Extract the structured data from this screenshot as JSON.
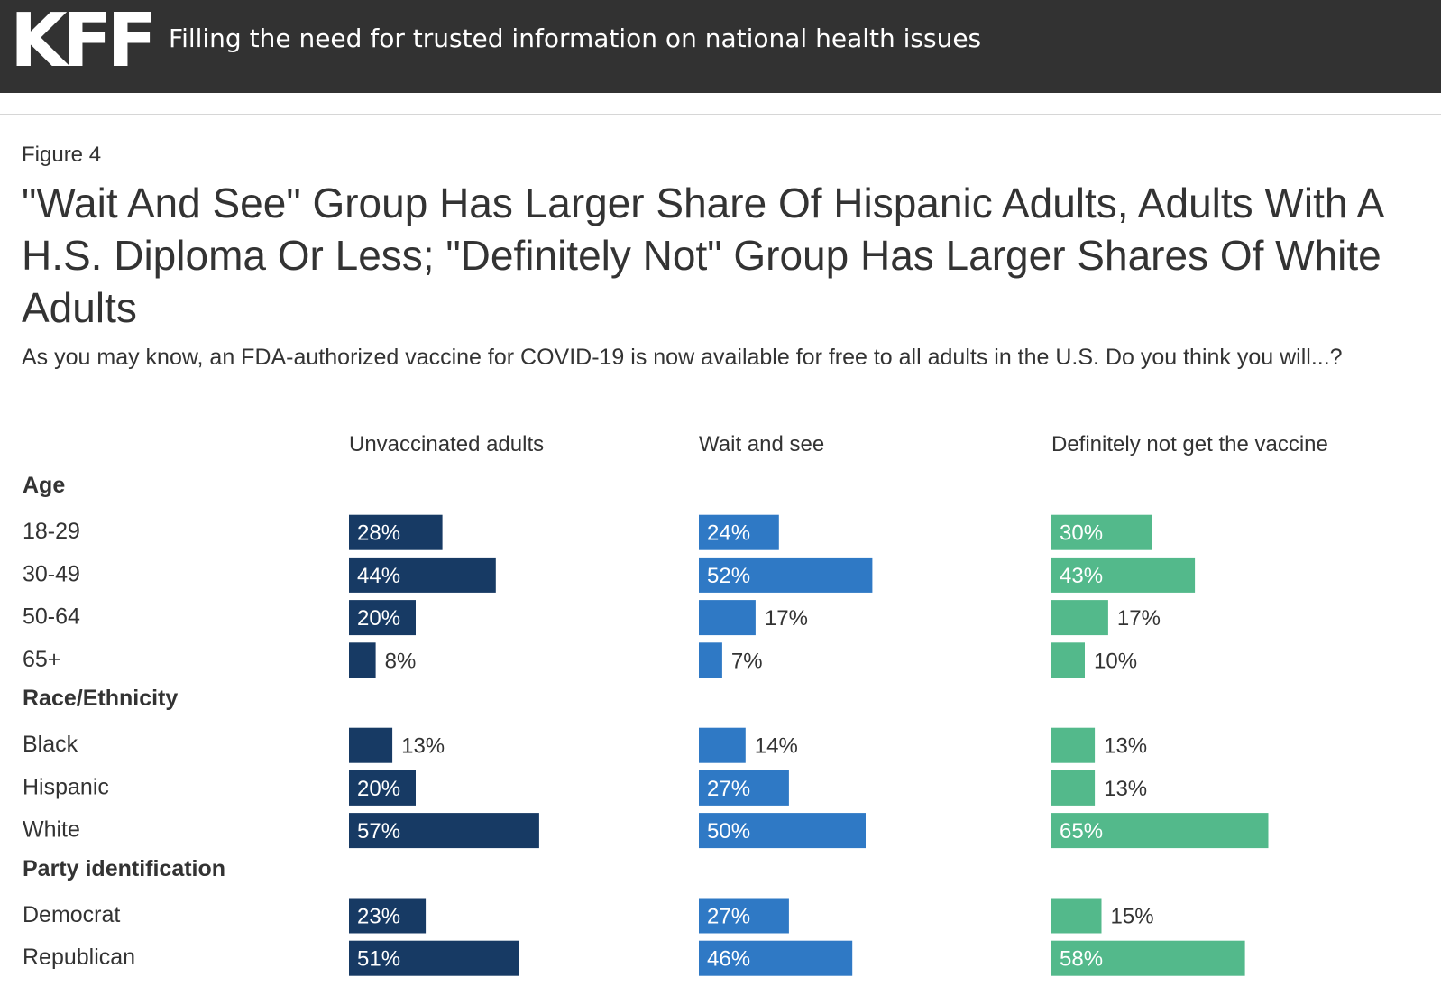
{
  "header": {
    "logo": "KFF",
    "tagline": "Filling the need for trusted information on national health issues"
  },
  "figure": {
    "label": "Figure 4",
    "title": "\"Wait And See\" Group Has Larger Share Of Hispanic Adults, Adults With A H.S. Diploma Or Less; \"Definitely Not\" Group Has Larger Shares Of White Adults",
    "subtitle": "As you may know, an FDA-authorized vaccine for COVID-19 is now available for free to all adults in the U.S. Do you think you will...?"
  },
  "chart_data": {
    "type": "bar",
    "orientation": "horizontal",
    "unit": "%",
    "series": [
      {
        "name": "Unvaccinated adults",
        "color": "#173a64",
        "values": [
          28,
          44,
          20,
          8,
          13,
          20,
          57,
          23,
          51
        ]
      },
      {
        "name": "Wait and see",
        "color": "#2f79c5",
        "values": [
          24,
          52,
          17,
          7,
          14,
          27,
          50,
          27,
          46
        ]
      },
      {
        "name": "Definitely not get the vaccine",
        "color": "#53b98b",
        "values": [
          30,
          43,
          17,
          10,
          13,
          13,
          65,
          15,
          58
        ]
      }
    ],
    "groups": [
      {
        "name": "Age",
        "categories": [
          "18-29",
          "30-49",
          "50-64",
          "65+"
        ]
      },
      {
        "name": "Race/Ethnicity",
        "categories": [
          "Black",
          "Hispanic",
          "White"
        ]
      },
      {
        "name": "Party identification",
        "categories": [
          "Democrat",
          "Republican"
        ]
      }
    ],
    "xlim": [
      0,
      100
    ],
    "grid": false,
    "legend": "column headers"
  }
}
